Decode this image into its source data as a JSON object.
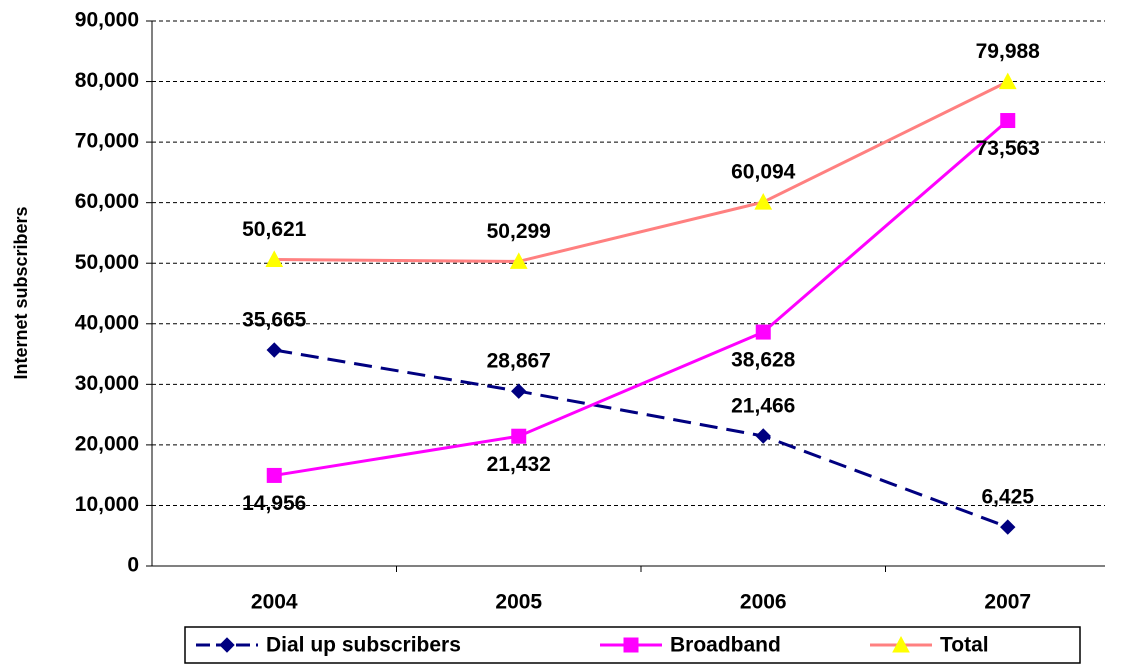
{
  "chart_data": {
    "type": "line",
    "y_label": "Internet subscribers",
    "categories": [
      "2004",
      "2005",
      "2006",
      "2007"
    ],
    "series": [
      {
        "name": "Dial up subscribers",
        "color": "#000080",
        "dashed": true,
        "marker": "diamond",
        "label_position": "above",
        "values": [
          35665,
          28867,
          21466,
          6425
        ],
        "value_labels": [
          "35,665",
          "28,867",
          "21,466",
          "6,425"
        ]
      },
      {
        "name": "Broadband",
        "color": "#ff00ff",
        "dashed": false,
        "marker": "square",
        "label_position": "below",
        "values": [
          14956,
          21432,
          38628,
          73563
        ],
        "value_labels": [
          "14,956",
          "21,432",
          "38,628",
          "73,563"
        ]
      },
      {
        "name": "Total",
        "color": "#ff8080",
        "marker_color": "#ffff00",
        "dashed": false,
        "marker": "triangle",
        "label_position": "above",
        "values": [
          50621,
          50299,
          60094,
          79988
        ],
        "value_labels": [
          "50,621",
          "50,299",
          "60,094",
          "79,988"
        ]
      }
    ],
    "ylim": [
      0,
      90000
    ],
    "yticks": [
      0,
      {
        "value": 10000,
        "label": "10,000"
      },
      {
        "value": 20000,
        "label": "20,000"
      },
      {
        "value": 30000,
        "label": "30,000"
      },
      {
        "value": 40000,
        "label": "40,000"
      },
      {
        "value": 50000,
        "label": "50,000"
      },
      {
        "value": 60000,
        "label": "60,000"
      },
      {
        "value": 70000,
        "label": "70,000"
      },
      {
        "value": 80000,
        "label": "80,000"
      },
      {
        "value": 90000,
        "label": "90,000"
      }
    ],
    "grid": true,
    "legend": "bottom"
  }
}
